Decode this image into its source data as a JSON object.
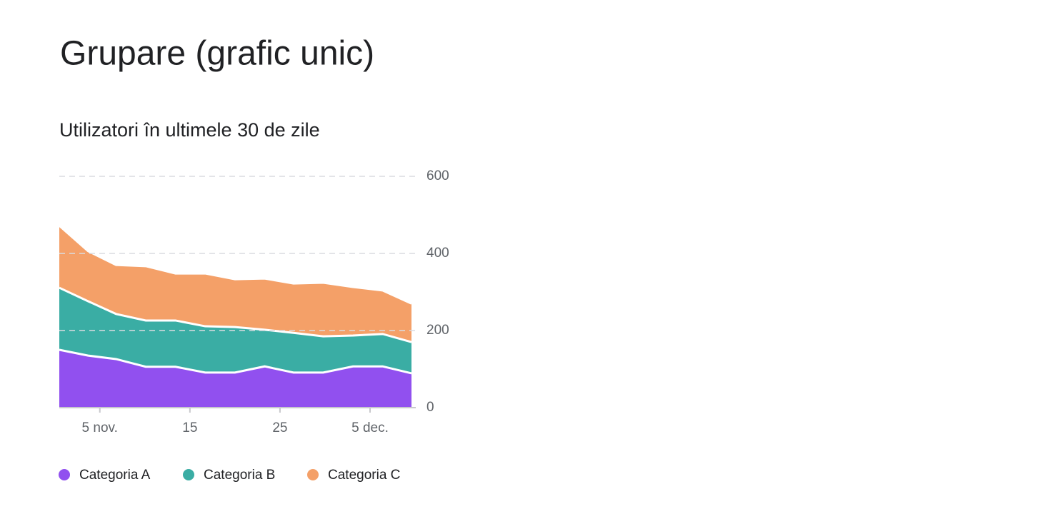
{
  "chart_data": {
    "type": "stacked-area",
    "title": "Grupare (grafic unic)",
    "subtitle": "Utilizatori în ultimele 30 de zile",
    "x": [
      0.5,
      3.7,
      6.8,
      10.1,
      13.4,
      16.7,
      20,
      23.3,
      26.5,
      29.8,
      33.1,
      36.4,
      39.6
    ],
    "xlim": [
      0.5,
      39.6
    ],
    "xticks": [
      {
        "value": 5,
        "label": "5 nov."
      },
      15,
      25,
      {
        "value": 35,
        "label": "5 dec."
      }
    ],
    "ylim": [
      0,
      600
    ],
    "yticks": [
      0,
      200,
      400,
      600
    ],
    "grid": true,
    "series": [
      {
        "name": "Categoria A",
        "color": "#9150ef",
        "values": [
          150,
          135,
          126,
          106,
          106,
          91,
          91,
          107,
          91,
          91,
          107,
          107,
          89
        ]
      },
      {
        "name": "Categoria B",
        "color": "#3aada4",
        "values": [
          161,
          141,
          117,
          120,
          120,
          120,
          118,
          95,
          103,
          94,
          80,
          84,
          81
        ]
      },
      {
        "name": "Categoria C",
        "color": "#f4a068",
        "values": [
          161,
          130,
          127,
          141,
          122,
          137,
          124,
          133,
          128,
          139,
          126,
          113,
          100
        ]
      }
    ]
  }
}
